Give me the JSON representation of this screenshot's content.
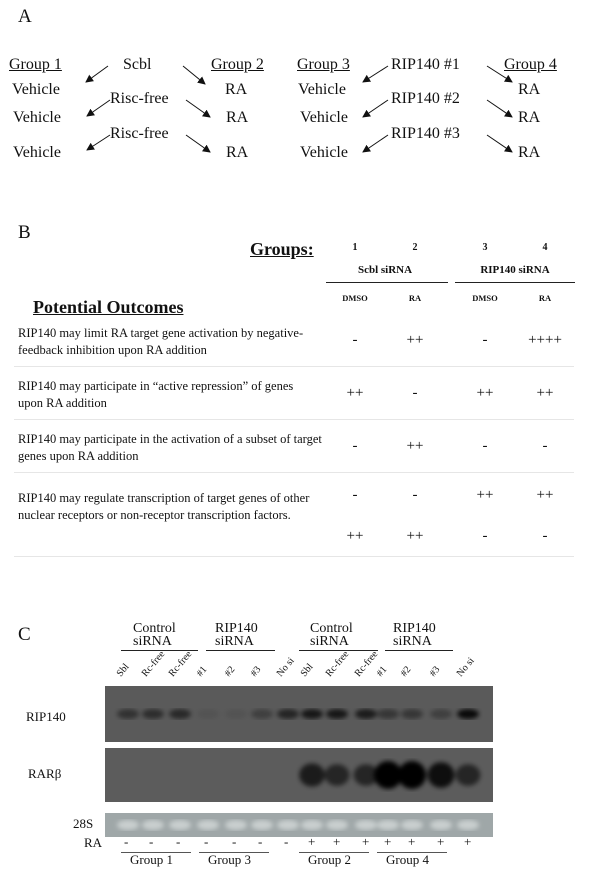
{
  "panel_a": {
    "label": "A",
    "groups": [
      "Group 1",
      "Group 2",
      "Group 3",
      "Group 4"
    ],
    "sources": [
      "Scbl",
      "Risc-free",
      "Risc-free",
      "RIP140 #1",
      "RIP140 #2",
      "RIP140 #3"
    ],
    "vehicle": "Vehicle",
    "ra": "RA"
  },
  "panel_b": {
    "label": "B",
    "groups_label": "Groups:",
    "group_numbers": [
      "1",
      "2",
      "3",
      "4"
    ],
    "subheaders": [
      "Scbl siRNA",
      "RIP140 siRNA"
    ],
    "treatments": [
      "DMSO",
      "RA",
      "DMSO",
      "RA"
    ],
    "outcomes_title": "Potential Outcomes",
    "rows": [
      {
        "text": "RIP140 may limit RA target gene activation by negative-feedback inhibition upon RA addition",
        "values": [
          "-",
          "++",
          "-",
          "++++"
        ]
      },
      {
        "text": "RIP140 may participate in “active repression” of genes upon RA addition",
        "values": [
          "++",
          "-",
          "++",
          "++"
        ]
      },
      {
        "text": "RIP140 may participate in the activation of a subset of target genes upon RA addition",
        "values": [
          "-",
          "++",
          "-",
          "-"
        ]
      },
      {
        "text": "RIP140 may regulate transcription of target genes of other nuclear receptors or non-receptor transcription factors.",
        "values": [
          "-",
          "-",
          "++",
          "++"
        ],
        "values2": [
          "++",
          "++",
          "-",
          "-"
        ]
      }
    ]
  },
  "panel_c": {
    "label": "C",
    "headers": [
      "Control siRNA",
      "RIP140 siRNA",
      "Control siRNA",
      "RIP140 siRNA"
    ],
    "lanes": [
      "Sbl",
      "Rc-free",
      "Rc-free",
      "#1",
      "#2",
      "#3",
      "No si",
      "Sbl",
      "Rc-free",
      "Rc-free",
      "#1",
      "#2",
      "#3",
      "No si"
    ],
    "blots": [
      {
        "label": "RIP140",
        "band_intensity": [
          0.45,
          0.5,
          0.55,
          0.08,
          0.08,
          0.3,
          0.6,
          0.75,
          0.75,
          0.7,
          0.4,
          0.4,
          0.3,
          0.9
        ]
      },
      {
        "label": "RARβ",
        "band_intensity": [
          0,
          0,
          0,
          0,
          0,
          0,
          0,
          0.7,
          0.6,
          0.6,
          1,
          1,
          0.85,
          0.6
        ]
      },
      {
        "label": "28S"
      }
    ],
    "ra_label": "RA",
    "ra": [
      "-",
      "-",
      "-",
      "-",
      "-",
      "-",
      "-",
      "+",
      "+",
      "+",
      "+",
      "+",
      "+",
      "+"
    ],
    "group_labels": [
      "Group 1",
      "Group 3",
      "Group 2",
      "Group 4"
    ]
  }
}
